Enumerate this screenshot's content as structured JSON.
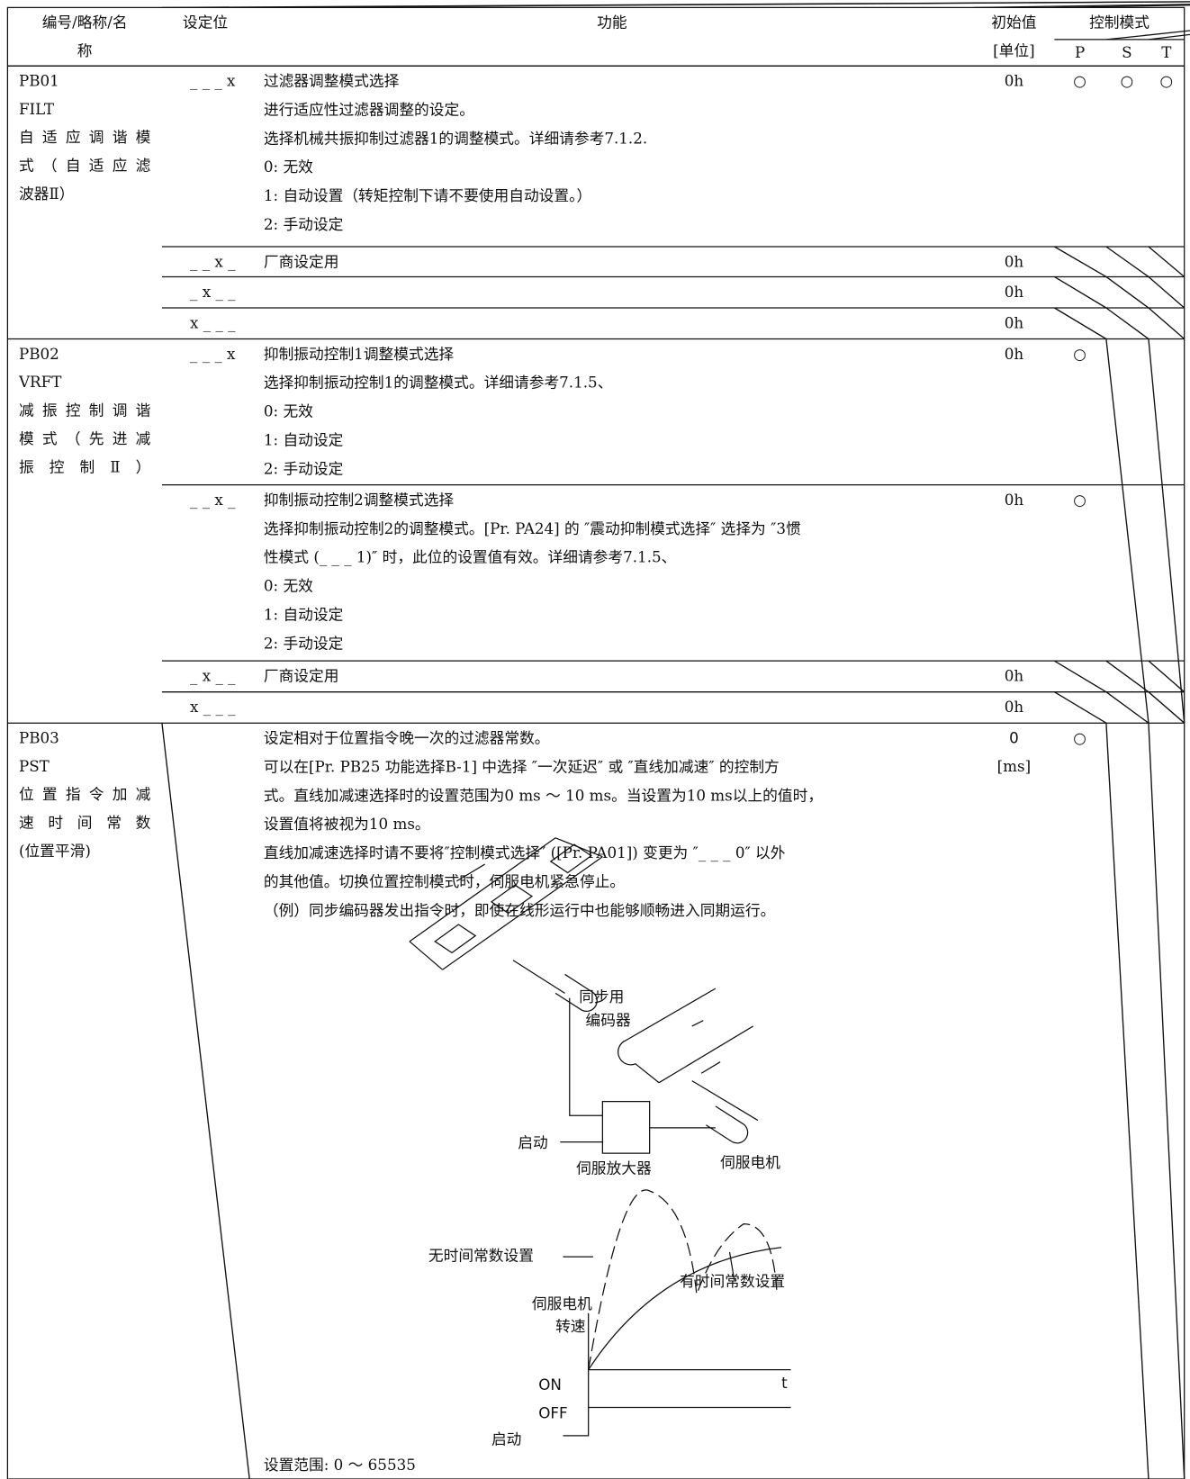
{
  "header": {
    "name_lines": [
      "编号/略称/名",
      "称"
    ],
    "bit": "设定位",
    "function": "功能",
    "initial_lines": [
      "初始值",
      "[单位]"
    ],
    "control": "控制模式",
    "modes": [
      "P",
      "S",
      "T"
    ]
  },
  "params": [
    {
      "name_lines": [
        "PB01",
        "FILT",
        "自适应调谐模",
        "式（自适应滤",
        "波器Ⅱ）"
      ],
      "settings": [
        {
          "bit": "_ _ _ x",
          "lines": [
            "过滤器调整模式选择",
            "进行适应性过滤器调整的设定。",
            "选择机械共振抑制过滤器1的调整模式。详细请参考7.1.2.",
            "0: 无效",
            "1: 自动设置（转矩控制下请不要使用自动设置。）",
            "2: 手动设定"
          ],
          "initial": "0h",
          "modes": [
            "○",
            "○",
            "○"
          ]
        },
        {
          "bit": "_ _ x _",
          "lines": [
            "厂商设定用"
          ],
          "initial": "0h"
        },
        {
          "bit": "_ x _ _",
          "initial": "0h"
        },
        {
          "bit": "x _ _ _",
          "initial": "0h"
        }
      ]
    },
    {
      "name_lines": [
        "PB02",
        "VRFT",
        "减振控制调谐",
        "模式（先进减",
        "振控制Ⅱ）"
      ],
      "settings": [
        {
          "bit": "_ _ _ x",
          "lines": [
            "抑制振动控制1调整模式选择",
            "选择抑制振动控制1的调整模式。详细请参考7.1.5、",
            "0: 无效",
            "1: 自动设定",
            "2: 手动设定"
          ],
          "initial": "0h",
          "modes": [
            "○"
          ]
        },
        {
          "bit": "_ _ x _",
          "lines": [
            "抑制振动控制2调整模式选择",
            "选择抑制振动控制2的调整模式。[Pr. PA24] 的 ″震动抑制模式选择″ 选择为 ″3惯",
            "性模式 (_ _ _ 1)″ 时，此位的设置值有效。详细请参考7.1.5、",
            "0: 无效",
            "1: 自动设定",
            "2: 手动设定"
          ],
          "initial": "0h",
          "modes": [
            "○"
          ]
        },
        {
          "bit": "_ x _ _",
          "lines": [
            "厂商设定用"
          ],
          "initial": "0h"
        },
        {
          "bit": "x _ _ _",
          "initial": "0h"
        }
      ]
    },
    {
      "name_lines": [
        "PB03",
        "PST",
        "位置指令加减",
        "速时间常数",
        "(位置平滑)"
      ],
      "settings": [
        {
          "lines": [
            "设定相对于位置指令晚一次的过滤器常数。",
            "可以在[Pr. PB25 功能选择B-1] 中选择 ″一次延迟″ 或 ″直线加减速″ 的控制方",
            "式。直线加减速选择时的设置范围为0 ms ～ 10 ms。当设置为10 ms以上的值时，",
            "设置值将被视为10 ms。",
            "直线加减速选择时请不要将″控制模式选择″ ([Pr. PA01]) 变更为 ″_ _ _ 0″ 以外",
            "的其他值。切换位置控制模式时，伺服电机紧急停止。",
            "（例）同步编码器发出指令时，即使在线形运行中也能够顺畅进入同期运行。"
          ],
          "initial": "0",
          "unit": "[ms]",
          "modes": [
            "○"
          ],
          "range": "设置范围: 0 ～ 65535"
        }
      ]
    }
  ],
  "diagram": {
    "sync_lines": [
      "同步用",
      "编码器"
    ],
    "start": "启动",
    "amplifier": "伺服放大器",
    "motor": "伺服电机",
    "no_const": "无时间常数设置",
    "with_const": "有时间常数设置",
    "speed_lines": [
      "伺服电机",
      "转速"
    ],
    "on": "ON",
    "off": "OFF",
    "t": "t",
    "start2": "启动"
  }
}
